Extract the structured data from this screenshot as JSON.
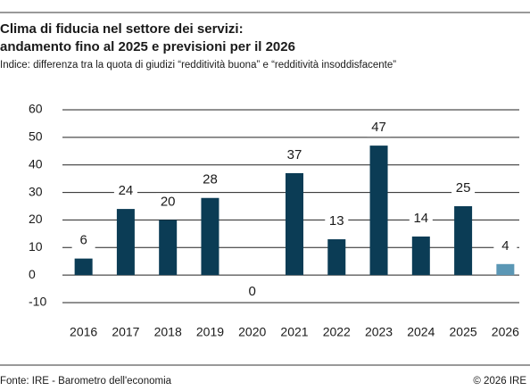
{
  "chart_data": {
    "type": "bar",
    "title": [
      "Clima di fiducia nel settore dei servizi:",
      "andamento fino al 2025 e previsioni per il 2026"
    ],
    "subtitle": "Indice: differenza tra la quota di giudizi “redditività buona” e “redditività insoddisfacente”",
    "categories": [
      "2016",
      "2017",
      "2018",
      "2019",
      "2020",
      "2021",
      "2022",
      "2023",
      "2024",
      "2025",
      "2026"
    ],
    "values": [
      6,
      24,
      20,
      28,
      0,
      37,
      13,
      47,
      14,
      25,
      4
    ],
    "colors": [
      "#0b3c55",
      "#0b3c55",
      "#0b3c55",
      "#0b3c55",
      "#0b3c55",
      "#0b3c55",
      "#0b3c55",
      "#0b3c55",
      "#0b3c55",
      "#0b3c55",
      "#5b97b5"
    ],
    "ylim": [
      -10,
      60
    ],
    "yticks": [
      -10,
      0,
      10,
      20,
      30,
      40,
      50,
      60
    ],
    "grid": true,
    "source": "Fonte: IRE - Barometro dell'economia",
    "copyright": "© 2026 IRE"
  }
}
